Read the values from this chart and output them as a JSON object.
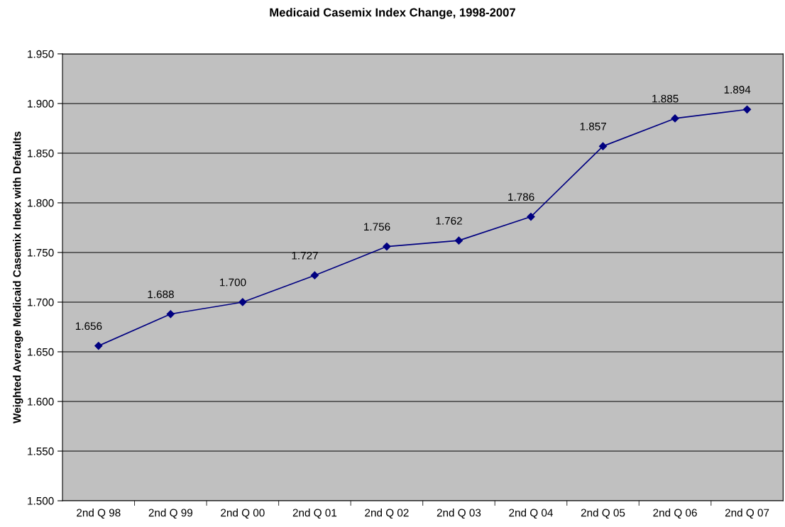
{
  "chart_data": {
    "type": "line",
    "title": "Medicaid Casemix Index Change, 1998-2007",
    "ylabel": "Weighted Average Medicaid Casemix Index with Defaults",
    "categories": [
      "2nd Q 98",
      "2nd Q 99",
      "2nd Q 00",
      "2nd Q 01",
      "2nd Q 02",
      "2nd Q 03",
      "2nd Q 04",
      "2nd Q 05",
      "2nd Q 06",
      "2nd Q 07"
    ],
    "series": [
      {
        "color": "#000080",
        "values": [
          1.656,
          1.688,
          1.7,
          1.727,
          1.756,
          1.762,
          1.786,
          1.857,
          1.885,
          1.894
        ],
        "value_labels": [
          "1.656",
          "1.688",
          "1.700",
          "1.727",
          "1.756",
          "1.762",
          "1.786",
          "1.857",
          "1.885",
          "1.894"
        ]
      }
    ],
    "ylim": [
      1.5,
      1.95
    ],
    "yticks": [
      {
        "value": 1.5,
        "label": "1.500"
      },
      {
        "value": 1.55,
        "label": "1.550"
      },
      {
        "value": 1.6,
        "label": "1.600"
      },
      {
        "value": 1.65,
        "label": "1.650"
      },
      {
        "value": 1.7,
        "label": "1.700"
      },
      {
        "value": 1.75,
        "label": "1.750"
      },
      {
        "value": 1.8,
        "label": "1.800"
      },
      {
        "value": 1.85,
        "label": "1.850"
      },
      {
        "value": 1.9,
        "label": "1.900"
      },
      {
        "value": 1.95,
        "label": "1.950"
      }
    ],
    "grid": "y",
    "marker": "diamond",
    "line_style": "solid"
  }
}
